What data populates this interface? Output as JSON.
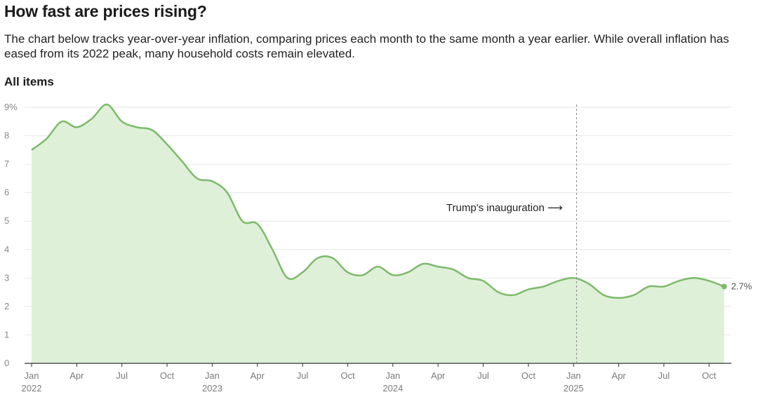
{
  "header": {
    "title": "How fast are prices rising?",
    "subtitle": "The chart below tracks year-over-year inflation, comparing prices each month to the same month a year earlier. While overall inflation has eased from its 2022 peak, many household costs remain elevated.",
    "section": "All items"
  },
  "colors": {
    "line": "#7dba6c",
    "area": "#dff0d8",
    "grid": "#e6e6e6",
    "axis": "#333333",
    "annotation_line": "#888888"
  },
  "chart_data": {
    "type": "area",
    "title": "All items",
    "xlabel": "",
    "ylabel": "",
    "ylim": [
      0,
      9
    ],
    "y_ticks": [
      0,
      1,
      2,
      3,
      4,
      5,
      6,
      7,
      8,
      9
    ],
    "y_tick_labels": [
      "0",
      "1",
      "2",
      "3",
      "4",
      "5",
      "6",
      "7",
      "8",
      "9%"
    ],
    "x_ticks": [
      {
        "index": 0,
        "label": "Jan",
        "year": "2022"
      },
      {
        "index": 3,
        "label": "Apr",
        "year": ""
      },
      {
        "index": 6,
        "label": "Jul",
        "year": ""
      },
      {
        "index": 9,
        "label": "Oct",
        "year": ""
      },
      {
        "index": 12,
        "label": "Jan",
        "year": "2023"
      },
      {
        "index": 15,
        "label": "Apr",
        "year": ""
      },
      {
        "index": 18,
        "label": "Jul",
        "year": ""
      },
      {
        "index": 21,
        "label": "Oct",
        "year": ""
      },
      {
        "index": 24,
        "label": "Jan",
        "year": "2024"
      },
      {
        "index": 27,
        "label": "Apr",
        "year": ""
      },
      {
        "index": 30,
        "label": "Jul",
        "year": ""
      },
      {
        "index": 33,
        "label": "Oct",
        "year": ""
      },
      {
        "index": 36,
        "label": "Jan",
        "year": "2025"
      },
      {
        "index": 39,
        "label": "Apr",
        "year": ""
      },
      {
        "index": 42,
        "label": "Jul",
        "year": ""
      },
      {
        "index": 45,
        "label": "Oct",
        "year": ""
      }
    ],
    "series": [
      {
        "name": "All items",
        "start": "2022-01",
        "values": [
          7.5,
          7.9,
          8.5,
          8.3,
          8.6,
          9.1,
          8.5,
          8.3,
          8.2,
          7.7,
          7.1,
          6.5,
          6.4,
          6.0,
          5.0,
          4.9,
          4.0,
          3.0,
          3.2,
          3.7,
          3.7,
          3.2,
          3.1,
          3.4,
          3.1,
          3.2,
          3.5,
          3.4,
          3.3,
          3.0,
          2.9,
          2.5,
          2.4,
          2.6,
          2.7,
          2.9,
          3.0,
          2.8,
          2.4,
          2.3,
          2.4,
          2.7,
          2.7,
          2.9,
          3.0,
          2.9,
          2.7
        ]
      }
    ],
    "annotations": [
      {
        "type": "vline",
        "index": 36.2,
        "label": "Trump's inauguration ⟶"
      },
      {
        "type": "end_label",
        "index": 46,
        "label": "2.7%"
      }
    ]
  }
}
